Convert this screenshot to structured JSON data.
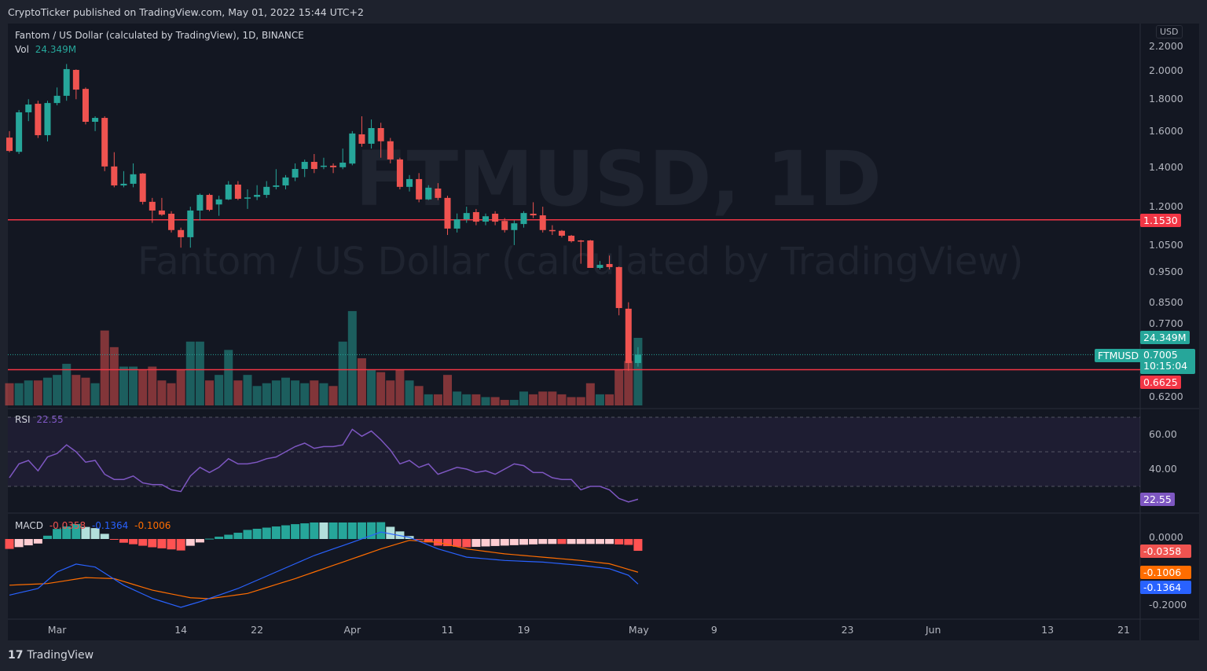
{
  "publisher": "CryptoTicker published on TradingView.com, May 01, 2022 15:44 UTC+2",
  "legend": {
    "title": "Fantom / US Dollar (calculated by TradingView), 1D, BINANCE",
    "vol_label": "Vol",
    "vol_value": "24.349M"
  },
  "watermark": {
    "symbol": "FTMUSD, 1D",
    "name": "Fantom / US Dollar (calculated by TradingView)"
  },
  "currency": "USD",
  "footer": "TradingView",
  "colors": {
    "up": "#26a69a",
    "down": "#ef5350",
    "rsi": "#7e57c2",
    "macd": "#2962ff",
    "signal": "#ff6d00",
    "hline": "#f23645"
  },
  "chart_data": {
    "type": "candlestick",
    "symbol": "FTMUSD",
    "interval": "1D",
    "first_date": "2022-02-24",
    "ohlc": [
      [
        1.562,
        1.6,
        1.48,
        1.487
      ],
      [
        1.482,
        1.73,
        1.47,
        1.715
      ],
      [
        1.715,
        1.8,
        1.66,
        1.765
      ],
      [
        1.77,
        1.79,
        1.56,
        1.576
      ],
      [
        1.576,
        1.79,
        1.54,
        1.775
      ],
      [
        1.775,
        1.88,
        1.76,
        1.823
      ],
      [
        1.823,
        2.05,
        1.79,
        2.012
      ],
      [
        2.006,
        2.01,
        1.8,
        1.865
      ],
      [
        1.87,
        1.88,
        1.64,
        1.656
      ],
      [
        1.656,
        1.69,
        1.6,
        1.68
      ],
      [
        1.68,
        1.69,
        1.38,
        1.404
      ],
      [
        1.404,
        1.48,
        1.3,
        1.309
      ],
      [
        1.309,
        1.38,
        1.3,
        1.317
      ],
      [
        1.317,
        1.42,
        1.3,
        1.364
      ],
      [
        1.368,
        1.37,
        1.22,
        1.232
      ],
      [
        1.232,
        1.25,
        1.14,
        1.193
      ],
      [
        1.193,
        1.25,
        1.17,
        1.175
      ],
      [
        1.179,
        1.19,
        1.1,
        1.11
      ],
      [
        1.11,
        1.12,
        1.04,
        1.081
      ],
      [
        1.081,
        1.21,
        1.04,
        1.193
      ],
      [
        1.193,
        1.27,
        1.15,
        1.264
      ],
      [
        1.264,
        1.27,
        1.19,
        1.196
      ],
      [
        1.22,
        1.26,
        1.17,
        1.243
      ],
      [
        1.243,
        1.33,
        1.24,
        1.313
      ],
      [
        1.313,
        1.33,
        1.24,
        1.246
      ],
      [
        1.248,
        1.29,
        1.2,
        1.252
      ],
      [
        1.255,
        1.31,
        1.24,
        1.264
      ],
      [
        1.264,
        1.33,
        1.25,
        1.302
      ],
      [
        1.302,
        1.39,
        1.29,
        1.309
      ],
      [
        1.309,
        1.36,
        1.29,
        1.348
      ],
      [
        1.348,
        1.42,
        1.33,
        1.391
      ],
      [
        1.391,
        1.44,
        1.35,
        1.428
      ],
      [
        1.428,
        1.47,
        1.37,
        1.391
      ],
      [
        1.404,
        1.45,
        1.39,
        1.408
      ],
      [
        1.408,
        1.42,
        1.37,
        1.4
      ],
      [
        1.4,
        1.5,
        1.39,
        1.424
      ],
      [
        1.419,
        1.6,
        1.41,
        1.586
      ],
      [
        1.581,
        1.69,
        1.51,
        1.527
      ],
      [
        1.527,
        1.67,
        1.5,
        1.618
      ],
      [
        1.618,
        1.65,
        1.45,
        1.541
      ],
      [
        1.541,
        1.56,
        1.42,
        1.441
      ],
      [
        1.441,
        1.45,
        1.29,
        1.302
      ],
      [
        1.302,
        1.36,
        1.28,
        1.34
      ],
      [
        1.34,
        1.37,
        1.23,
        1.243
      ],
      [
        1.243,
        1.31,
        1.24,
        1.298
      ],
      [
        1.294,
        1.32,
        1.24,
        1.25
      ],
      [
        1.25,
        1.26,
        1.09,
        1.116
      ],
      [
        1.116,
        1.18,
        1.1,
        1.155
      ],
      [
        1.155,
        1.21,
        1.14,
        1.182
      ],
      [
        1.186,
        1.2,
        1.13,
        1.145
      ],
      [
        1.145,
        1.18,
        1.13,
        1.168
      ],
      [
        1.179,
        1.19,
        1.13,
        1.145
      ],
      [
        1.148,
        1.16,
        1.1,
        1.11
      ],
      [
        1.11,
        1.15,
        1.05,
        1.138
      ],
      [
        1.135,
        1.19,
        1.12,
        1.182
      ],
      [
        1.179,
        1.23,
        1.16,
        1.172
      ],
      [
        1.172,
        1.21,
        1.1,
        1.11
      ],
      [
        1.11,
        1.13,
        1.09,
        1.107
      ],
      [
        1.107,
        1.11,
        1.08,
        1.087
      ],
      [
        1.087,
        1.09,
        1.06,
        1.065
      ],
      [
        1.068,
        1.07,
        0.98,
        1.066
      ],
      [
        1.068,
        1.07,
        0.97,
        0.965
      ],
      [
        0.965,
        0.99,
        0.96,
        0.976
      ],
      [
        0.979,
        1.01,
        0.96,
        0.968
      ],
      [
        0.968,
        0.97,
        0.81,
        0.832
      ],
      [
        0.83,
        0.85,
        0.66,
        0.679
      ],
      [
        0.679,
        0.72,
        0.67,
        0.7005
      ]
    ],
    "volume_millions": [
      8,
      8,
      9,
      9,
      10,
      11,
      15,
      11,
      10,
      8,
      27,
      21,
      14,
      14,
      13,
      14,
      9,
      8,
      13,
      23,
      23,
      9,
      11,
      20,
      9,
      11,
      7,
      8,
      9,
      10,
      9,
      8,
      9,
      8,
      7,
      23,
      34,
      17,
      13,
      12,
      9,
      13,
      9,
      7,
      4,
      4,
      11,
      5,
      4,
      4,
      3,
      3,
      2,
      2,
      5,
      4,
      5,
      5,
      4,
      3,
      3,
      8,
      4,
      4,
      13,
      16,
      24.349
    ],
    "price_ticks": [
      "2.2000",
      "2.0000",
      "1.8000",
      "1.6000",
      "1.4000",
      "1.2000",
      "1.0500",
      "0.9500",
      "0.8500",
      "0.7700",
      "0.6200"
    ],
    "date_ticks": [
      {
        "label": "Mar",
        "day_index": 5
      },
      {
        "label": "14",
        "day_index": 18
      },
      {
        "label": "22",
        "day_index": 26
      },
      {
        "label": "Apr",
        "day_index": 36
      },
      {
        "label": "11",
        "day_index": 46
      },
      {
        "label": "19",
        "day_index": 54
      },
      {
        "label": "May",
        "day_index": 66
      },
      {
        "label": "9",
        "day_index": 74
      },
      {
        "label": "23",
        "day_index": 88
      },
      {
        "label": "Jun",
        "day_index": 97
      },
      {
        "label": "13",
        "day_index": 109
      },
      {
        "label": "21",
        "day_index": 117
      }
    ],
    "horizontal_lines": [
      {
        "price": 1.153,
        "label": "1.1530"
      },
      {
        "price": 0.6625,
        "label": "0.6625"
      }
    ],
    "last_price": {
      "symbol": "FTMUSD",
      "value": "0.7005",
      "countdown": "10:15:04",
      "volume": "24.349M"
    },
    "rsi": {
      "label": "RSI",
      "value": "22.55",
      "bands": [
        70,
        50,
        30
      ],
      "ticks": [
        "60.00",
        "40.00"
      ],
      "values": [
        35,
        43,
        45,
        39,
        47,
        49,
        54,
        50,
        44,
        45,
        37,
        34,
        34,
        36,
        32,
        31,
        31,
        28,
        27,
        36,
        41,
        38,
        41,
        46,
        43,
        43,
        44,
        46,
        47,
        50,
        53,
        55,
        52,
        53,
        53,
        54,
        63,
        59,
        62,
        57,
        51,
        43,
        45,
        41,
        43,
        37,
        39,
        41,
        40,
        38,
        39,
        37,
        40,
        43,
        42,
        38,
        38,
        35,
        34,
        34,
        28,
        30,
        30,
        28,
        23,
        21,
        22.55
      ]
    },
    "macd": {
      "label": "MACD",
      "hist_value": "-0.0358",
      "macd_value": "-0.1364",
      "signal_value": "-0.1006",
      "ticks": [
        "0.0000",
        "-0.2000"
      ],
      "macd_points": [
        [
          0,
          -0.17
        ],
        [
          3,
          -0.15
        ],
        [
          5,
          -0.1
        ],
        [
          7,
          -0.076
        ],
        [
          9,
          -0.085
        ],
        [
          12,
          -0.14
        ],
        [
          15,
          -0.18
        ],
        [
          18,
          -0.207
        ],
        [
          20,
          -0.19
        ],
        [
          24,
          -0.15
        ],
        [
          28,
          -0.1
        ],
        [
          32,
          -0.05
        ],
        [
          36,
          -0.01
        ],
        [
          39,
          0.021
        ],
        [
          42,
          0.005
        ],
        [
          45,
          -0.03
        ],
        [
          48,
          -0.055
        ],
        [
          52,
          -0.065
        ],
        [
          56,
          -0.07
        ],
        [
          60,
          -0.08
        ],
        [
          63,
          -0.09
        ],
        [
          65,
          -0.11
        ],
        [
          66,
          -0.1364
        ]
      ],
      "signal_points": [
        [
          0,
          -0.14
        ],
        [
          4,
          -0.135
        ],
        [
          8,
          -0.117
        ],
        [
          11,
          -0.12
        ],
        [
          15,
          -0.155
        ],
        [
          19,
          -0.178
        ],
        [
          21,
          -0.181
        ],
        [
          25,
          -0.165
        ],
        [
          30,
          -0.12
        ],
        [
          35,
          -0.07
        ],
        [
          39,
          -0.03
        ],
        [
          42,
          -0.004
        ],
        [
          45,
          -0.01
        ],
        [
          48,
          -0.03
        ],
        [
          52,
          -0.045
        ],
        [
          56,
          -0.055
        ],
        [
          60,
          -0.065
        ],
        [
          63,
          -0.075
        ],
        [
          66,
          -0.1006
        ]
      ]
    }
  }
}
